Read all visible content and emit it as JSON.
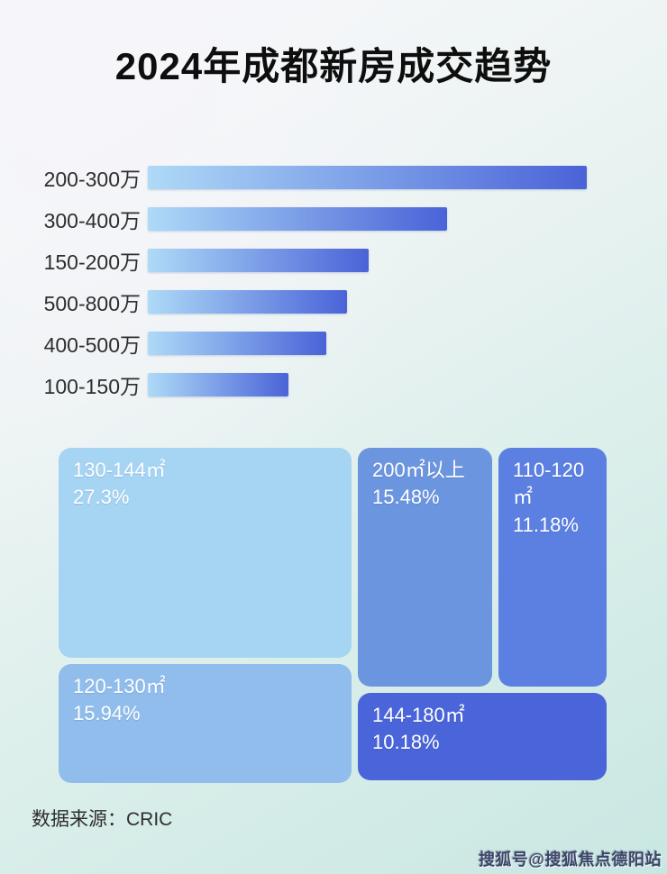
{
  "title": "2024年成都新房成交趋势",
  "colors": {
    "bar_gradient_from": "#aedaf7",
    "bar_gradient_to": "#4a63d8",
    "background_top_left": "#f8f8fb",
    "background_bottom_right": "#c9e7e2",
    "label_text": "#2e2e2e",
    "treemap_text": "#ffffff"
  },
  "chart_data": [
    {
      "type": "bar",
      "orientation": "horizontal",
      "title": "2024年成都新房成交趋势",
      "categories": [
        "200-300万",
        "300-400万",
        "150-200万",
        "500-800万",
        "400-500万",
        "100-150万"
      ],
      "values_relative_pct_of_max": [
        100,
        68.1,
        50.4,
        45.3,
        40.7,
        32.1
      ],
      "value_labels_shown": false,
      "axes_shown": false,
      "grid": false,
      "legend": "none",
      "bar_color_gradient": [
        "#aedaf7",
        "#4a63d8"
      ]
    },
    {
      "type": "treemap",
      "title": "",
      "items": [
        {
          "label": "130-144㎡",
          "value_pct": 27.3,
          "display": "27.3%",
          "color": "#a6d4f3"
        },
        {
          "label": "120-130㎡",
          "value_pct": 15.94,
          "display": "15.94%",
          "color": "#90bdec"
        },
        {
          "label": "200㎡以上",
          "value_pct": 15.48,
          "display": "15.48%",
          "color": "#6c95df"
        },
        {
          "label": "110-120㎡",
          "value_pct": 11.18,
          "display": "11.18%",
          "color": "#5b80e2"
        },
        {
          "label": "144-180㎡",
          "value_pct": 10.18,
          "display": "10.18%",
          "color": "#4a64d9"
        }
      ],
      "legend": "none"
    }
  ],
  "footer": {
    "source_label": "数据来源：CRIC"
  },
  "watermark": "搜狐号@搜狐焦点德阳站"
}
